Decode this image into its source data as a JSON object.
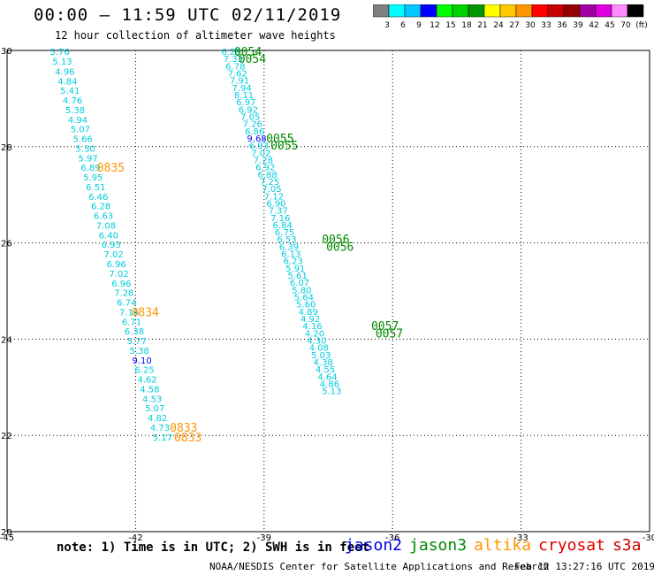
{
  "header": {
    "title": "00:00 – 11:59 UTC 02/11/2019",
    "subtitle": "12 hour collection of altimeter wave heights"
  },
  "colorbar": {
    "labels": [
      "3",
      "6",
      "9",
      "12",
      "15",
      "18",
      "21",
      "24",
      "27",
      "30",
      "33",
      "36",
      "39",
      "42",
      "45",
      "70",
      "(ft)"
    ],
    "colors": [
      "#7f7f7f",
      "#00ffff",
      "#00c8ff",
      "#0000ff",
      "#00ff00",
      "#00d200",
      "#009600",
      "#ffff00",
      "#ffc800",
      "#ff9600",
      "#ff0000",
      "#c80000",
      "#960000",
      "#a000a0",
      "#e000e0",
      "#ff8cff",
      "#000000"
    ]
  },
  "chart_data": {
    "type": "scatter",
    "xlim": [
      -45,
      -30
    ],
    "ylim": [
      20,
      30
    ],
    "xticks": [
      "-45",
      "-42",
      "-39",
      "-36",
      "-33",
      "-30"
    ],
    "yticks": [
      "30",
      "28",
      "26",
      "24",
      "22",
      "20"
    ],
    "grid": true,
    "series": [
      {
        "name": "altika",
        "color_key": "altika",
        "points": [
          {
            "lon": -44.0,
            "lat": 29.98,
            "swh": "5.76"
          },
          {
            "lon": -43.94,
            "lat": 29.78,
            "swh": "5.13"
          },
          {
            "lon": -43.88,
            "lat": 29.57,
            "swh": "4.96"
          },
          {
            "lon": -43.82,
            "lat": 29.37,
            "swh": "4.84"
          },
          {
            "lon": -43.76,
            "lat": 29.17,
            "swh": "5.41"
          },
          {
            "lon": -43.7,
            "lat": 28.97,
            "swh": "4.76"
          },
          {
            "lon": -43.64,
            "lat": 28.77,
            "swh": "5.38"
          },
          {
            "lon": -43.58,
            "lat": 28.57,
            "swh": "4.94"
          },
          {
            "lon": -43.52,
            "lat": 28.37,
            "swh": "5.07"
          },
          {
            "lon": -43.46,
            "lat": 28.17,
            "swh": "5.66"
          },
          {
            "lon": -43.4,
            "lat": 27.97,
            "swh": "5.50"
          },
          {
            "lon": -43.34,
            "lat": 27.77,
            "swh": "5.97"
          },
          {
            "lon": -43.28,
            "lat": 27.57,
            "swh": "6.89"
          },
          {
            "lon": -43.22,
            "lat": 27.37,
            "swh": "5.95"
          },
          {
            "lon": -43.16,
            "lat": 27.17,
            "swh": "6.51"
          },
          {
            "lon": -43.1,
            "lat": 26.97,
            "swh": "6.46"
          },
          {
            "lon": -43.04,
            "lat": 26.77,
            "swh": "6.28"
          },
          {
            "lon": -42.98,
            "lat": 26.57,
            "swh": "6.63"
          },
          {
            "lon": -42.92,
            "lat": 26.37,
            "swh": "7.08"
          },
          {
            "lon": -42.86,
            "lat": 26.17,
            "swh": "6.40"
          },
          {
            "lon": -42.8,
            "lat": 25.97,
            "swh": "6.93"
          },
          {
            "lon": -42.74,
            "lat": 25.77,
            "swh": "7.02"
          },
          {
            "lon": -42.68,
            "lat": 25.57,
            "swh": "6.96"
          },
          {
            "lon": -42.62,
            "lat": 25.37,
            "swh": "7.02"
          },
          {
            "lon": -42.56,
            "lat": 25.17,
            "swh": "6.96"
          },
          {
            "lon": -42.5,
            "lat": 24.97,
            "swh": "7.28"
          },
          {
            "lon": -42.44,
            "lat": 24.77,
            "swh": "6.74"
          },
          {
            "lon": -42.38,
            "lat": 24.57,
            "swh": "7.16"
          },
          {
            "lon": -42.32,
            "lat": 24.37,
            "swh": "6.71"
          },
          {
            "lon": -42.26,
            "lat": 24.17,
            "swh": "6.38"
          },
          {
            "lon": -42.2,
            "lat": 23.97,
            "swh": "5.77"
          },
          {
            "lon": -42.14,
            "lat": 23.77,
            "swh": "5.38"
          },
          {
            "lon": -42.08,
            "lat": 23.57,
            "swh": "9.10",
            "color_override": "#0000ff"
          },
          {
            "lon": -42.02,
            "lat": 23.37,
            "swh": "6.25"
          },
          {
            "lon": -41.96,
            "lat": 23.17,
            "swh": "4.62"
          },
          {
            "lon": -41.9,
            "lat": 22.97,
            "swh": "4.58"
          },
          {
            "lon": -41.84,
            "lat": 22.77,
            "swh": "4.53"
          },
          {
            "lon": -41.78,
            "lat": 22.57,
            "swh": "5.07"
          },
          {
            "lon": -41.72,
            "lat": 22.37,
            "swh": "4.82"
          },
          {
            "lon": -41.66,
            "lat": 22.17,
            "swh": "4.73"
          },
          {
            "lon": -41.6,
            "lat": 21.97,
            "swh": "5.17"
          }
        ],
        "time_labels": [
          {
            "text": "0835",
            "lon": -42.9,
            "lat": 27.57
          },
          {
            "text": "0834",
            "lon": -42.1,
            "lat": 24.57
          },
          {
            "text": "0833",
            "lon": -41.2,
            "lat": 22.17
          },
          {
            "text": "0833",
            "lon": -41.1,
            "lat": 21.97
          }
        ]
      },
      {
        "name": "jason3",
        "color_key": "jason3",
        "points": [
          {
            "lon": -40.0,
            "lat": 29.98,
            "swh": "6.29"
          },
          {
            "lon": -39.95,
            "lat": 29.83,
            "swh": "7.33"
          },
          {
            "lon": -39.9,
            "lat": 29.68,
            "swh": "6.78"
          },
          {
            "lon": -39.85,
            "lat": 29.53,
            "swh": "7.62"
          },
          {
            "lon": -39.8,
            "lat": 29.38,
            "swh": "7.91"
          },
          {
            "lon": -39.75,
            "lat": 29.23,
            "swh": "7.94"
          },
          {
            "lon": -39.7,
            "lat": 29.08,
            "swh": "8.11"
          },
          {
            "lon": -39.65,
            "lat": 28.93,
            "swh": "6.97"
          },
          {
            "lon": -39.6,
            "lat": 28.78,
            "swh": "6.92"
          },
          {
            "lon": -39.55,
            "lat": 28.63,
            "swh": "7.05"
          },
          {
            "lon": -39.5,
            "lat": 28.48,
            "swh": "7.26"
          },
          {
            "lon": -39.45,
            "lat": 28.33,
            "swh": "6.86"
          },
          {
            "lon": -39.4,
            "lat": 28.18,
            "swh": "9.68",
            "color_override": "#0000ff"
          },
          {
            "lon": -39.35,
            "lat": 28.03,
            "swh": "6.93"
          },
          {
            "lon": -39.3,
            "lat": 27.88,
            "swh": "7.02"
          },
          {
            "lon": -39.25,
            "lat": 27.73,
            "swh": "7.28"
          },
          {
            "lon": -39.2,
            "lat": 27.58,
            "swh": "6.92"
          },
          {
            "lon": -39.15,
            "lat": 27.43,
            "swh": "6.88"
          },
          {
            "lon": -39.1,
            "lat": 27.28,
            "swh": "7.25"
          },
          {
            "lon": -39.05,
            "lat": 27.13,
            "swh": "7.05"
          },
          {
            "lon": -39.0,
            "lat": 26.98,
            "swh": "7.12"
          },
          {
            "lon": -38.95,
            "lat": 26.83,
            "swh": "6.90"
          },
          {
            "lon": -38.9,
            "lat": 26.68,
            "swh": "7.37"
          },
          {
            "lon": -38.85,
            "lat": 26.53,
            "swh": "7.16"
          },
          {
            "lon": -38.8,
            "lat": 26.38,
            "swh": "6.84"
          },
          {
            "lon": -38.75,
            "lat": 26.23,
            "swh": "6.75"
          },
          {
            "lon": -38.7,
            "lat": 26.08,
            "swh": "6.53"
          },
          {
            "lon": -38.65,
            "lat": 25.93,
            "swh": "6.39"
          },
          {
            "lon": -38.6,
            "lat": 25.78,
            "swh": "6.13"
          },
          {
            "lon": -38.55,
            "lat": 25.63,
            "swh": "6.23"
          },
          {
            "lon": -38.5,
            "lat": 25.48,
            "swh": "5.91"
          },
          {
            "lon": -38.45,
            "lat": 25.33,
            "swh": "5.61"
          },
          {
            "lon": -38.4,
            "lat": 25.18,
            "swh": "6.07"
          },
          {
            "lon": -38.35,
            "lat": 25.03,
            "swh": "5.80"
          },
          {
            "lon": -38.3,
            "lat": 24.88,
            "swh": "5.64"
          },
          {
            "lon": -38.25,
            "lat": 24.73,
            "swh": "5.60"
          },
          {
            "lon": -38.2,
            "lat": 24.58,
            "swh": "4.89"
          },
          {
            "lon": -38.15,
            "lat": 24.43,
            "swh": "4.92"
          },
          {
            "lon": -38.1,
            "lat": 24.28,
            "swh": "4.16"
          },
          {
            "lon": -38.05,
            "lat": 24.13,
            "swh": "4.20"
          },
          {
            "lon": -38.0,
            "lat": 23.98,
            "swh": "4.30"
          },
          {
            "lon": -37.95,
            "lat": 23.83,
            "swh": "4.08"
          },
          {
            "lon": -37.9,
            "lat": 23.68,
            "swh": "5.03"
          },
          {
            "lon": -37.85,
            "lat": 23.53,
            "swh": "4.38"
          },
          {
            "lon": -37.8,
            "lat": 23.38,
            "swh": "4.55"
          },
          {
            "lon": -37.75,
            "lat": 23.23,
            "swh": "4.64"
          },
          {
            "lon": -37.7,
            "lat": 23.08,
            "swh": "4.86"
          },
          {
            "lon": -37.65,
            "lat": 22.93,
            "swh": "5.13"
          }
        ],
        "time_labels": [
          {
            "text": "0054",
            "lon": -39.7,
            "lat": 29.98
          },
          {
            "text": "0054",
            "lon": -39.6,
            "lat": 29.83
          },
          {
            "text": "0055",
            "lon": -38.95,
            "lat": 28.18
          },
          {
            "text": "0055",
            "lon": -38.85,
            "lat": 28.03
          },
          {
            "text": "0056",
            "lon": -37.65,
            "lat": 26.08
          },
          {
            "text": "0056",
            "lon": -37.55,
            "lat": 25.93
          },
          {
            "text": "0057",
            "lon": -36.5,
            "lat": 24.28
          },
          {
            "text": "0057",
            "lon": -36.4,
            "lat": 24.13
          }
        ]
      }
    ]
  },
  "footer": {
    "note": "note: 1) Time is in UTC; 2) SWH is in feet",
    "legend": [
      {
        "name": "jason2",
        "color": "#0000dd"
      },
      {
        "name": "jason3",
        "color": "#008a00"
      },
      {
        "name": "altika",
        "color": "#ff9600"
      },
      {
        "name": "cryosat",
        "color": "#dd0000"
      },
      {
        "name": "s3a",
        "color": "#cc0000"
      }
    ],
    "credit": "NOAA/NESDIS Center for Satellite Applications and Research",
    "timestamp": "Feb 12 13:27:16 UTC 2019"
  },
  "colors": {
    "swh_default": "#00ccdd",
    "altika": "#ff9600",
    "jason3": "#008a00",
    "grid": "#000000"
  }
}
